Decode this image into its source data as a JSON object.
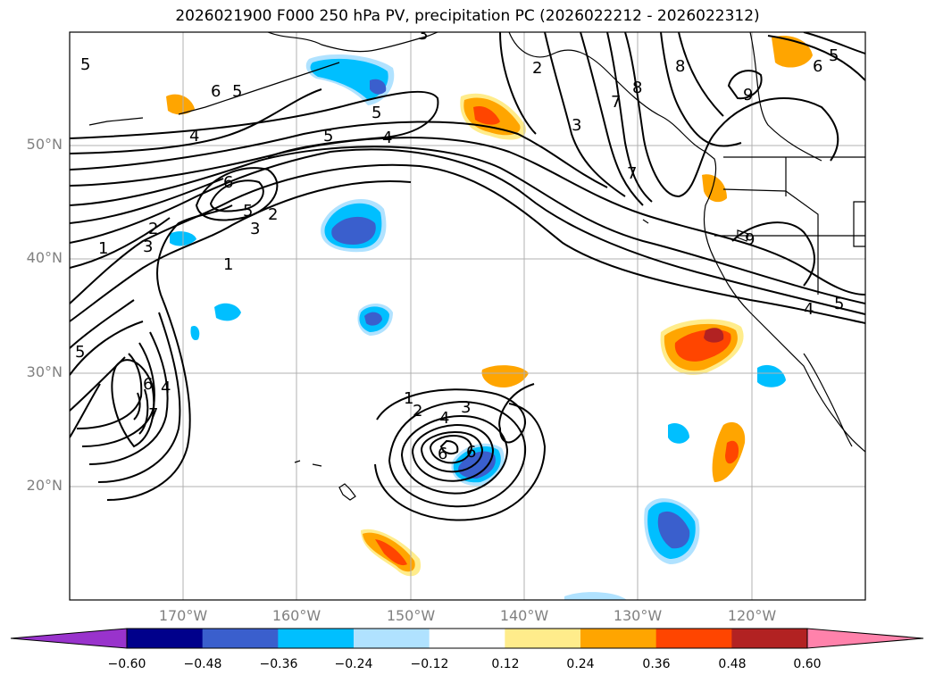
{
  "title": "2026021900 F000 250 hPa PV, precipitation PC (2026022212 - 2026022312)",
  "lat_labels": [
    {
      "text": "50°N",
      "lat": 50
    },
    {
      "text": "40°N",
      "lat": 40
    },
    {
      "text": "30°N",
      "lat": 30
    },
    {
      "text": "20°N",
      "lat": 20
    }
  ],
  "lon_labels": [
    {
      "text": "170°W",
      "lon": -170
    },
    {
      "text": "160°W",
      "lon": -160
    },
    {
      "text": "150°W",
      "lon": -150
    },
    {
      "text": "140°W",
      "lon": -140
    },
    {
      "text": "130°W",
      "lon": -130
    },
    {
      "text": "120°W",
      "lon": -120
    }
  ],
  "extent": {
    "lon_min": -180,
    "lon_max": -110,
    "lat_min": 10,
    "lat_max": 60
  },
  "pv_contour_labels": [
    "1",
    "2",
    "3",
    "4",
    "5",
    "6",
    "7",
    "8",
    "9"
  ],
  "colorbar": {
    "levels": [
      "−0.60",
      "−0.48",
      "−0.36",
      "−0.24",
      "−0.12",
      "0.12",
      "0.24",
      "0.36",
      "0.48",
      "0.60"
    ],
    "colors": [
      "#9933cc",
      "#00008b",
      "#3a5fcd",
      "#00bfff",
      "#b0e2ff",
      "#ffffff",
      "#ffec8b",
      "#ffa500",
      "#ff4500",
      "#b22222",
      "#ff82ab"
    ]
  }
}
